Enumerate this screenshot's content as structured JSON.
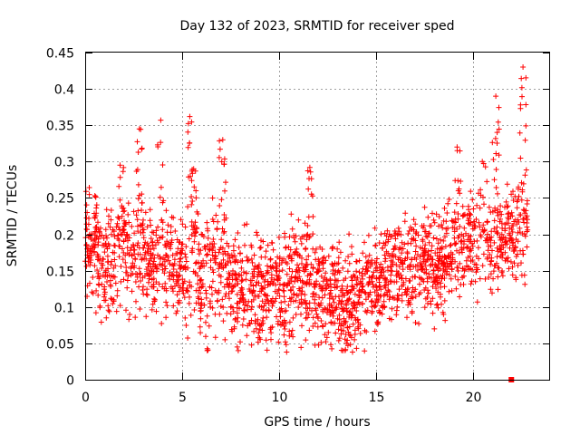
{
  "chart_data": {
    "type": "scatter",
    "title": "Day 132 of 2023, SRMTID for receiver sped",
    "xlabel": "GPS time / hours",
    "ylabel": "SRMTID / TECUs",
    "xlim": [
      0,
      24
    ],
    "ylim": [
      0,
      0.45
    ],
    "xticks": [
      0,
      5,
      10,
      15,
      20
    ],
    "xtick_labels": [
      "0",
      "5",
      "10",
      "15",
      "20"
    ],
    "yticks": [
      0,
      0.05,
      0.1,
      0.15,
      0.2,
      0.25,
      0.3,
      0.35,
      0.4,
      0.45
    ],
    "ytick_labels": [
      "0",
      "0.05",
      "0.1",
      "0.15",
      "0.2",
      "0.25",
      "0.3",
      "0.35",
      "0.4",
      "0.45"
    ],
    "grid": true,
    "marker": "plus",
    "color": "#ff0000",
    "baseline_level": [
      [
        0,
        0.18
      ],
      [
        1,
        0.155
      ],
      [
        2,
        0.175
      ],
      [
        3,
        0.17
      ],
      [
        4,
        0.16
      ],
      [
        5,
        0.15
      ],
      [
        6,
        0.15
      ],
      [
        7,
        0.145
      ],
      [
        8,
        0.135
      ],
      [
        9,
        0.12
      ],
      [
        10,
        0.135
      ],
      [
        11,
        0.14
      ],
      [
        12,
        0.13
      ],
      [
        13,
        0.115
      ],
      [
        13.5,
        0.1
      ],
      [
        14,
        0.12
      ],
      [
        15,
        0.14
      ],
      [
        16,
        0.15
      ],
      [
        17,
        0.155
      ],
      [
        18,
        0.16
      ],
      [
        19,
        0.175
      ],
      [
        20,
        0.19
      ],
      [
        21,
        0.195
      ],
      [
        22,
        0.195
      ],
      [
        22.8,
        0.21
      ]
    ],
    "upper_bursts": [
      {
        "x": 0.5,
        "y": 0.253
      },
      {
        "x": 1.8,
        "y": 0.295
      },
      {
        "x": 2.8,
        "y": 0.345
      },
      {
        "x": 3.9,
        "y": 0.357
      },
      {
        "x": 5.4,
        "y": 0.362
      },
      {
        "x": 5.6,
        "y": 0.29
      },
      {
        "x": 7.1,
        "y": 0.33
      },
      {
        "x": 11.6,
        "y": 0.292
      },
      {
        "x": 19.2,
        "y": 0.32
      },
      {
        "x": 20.5,
        "y": 0.3
      },
      {
        "x": 21.2,
        "y": 0.39
      },
      {
        "x": 22.6,
        "y": 0.43
      }
    ],
    "lower_dips": [
      {
        "x": 6.3,
        "y": 0.04
      },
      {
        "x": 7.9,
        "y": 0.04
      },
      {
        "x": 10.4,
        "y": 0.038
      },
      {
        "x": 13.3,
        "y": 0.04
      },
      {
        "x": 13.8,
        "y": 0.038
      }
    ],
    "isolated_points": [
      {
        "x": 22.0,
        "y": 0.0,
        "marker": "square"
      }
    ],
    "point_count": 2400
  }
}
